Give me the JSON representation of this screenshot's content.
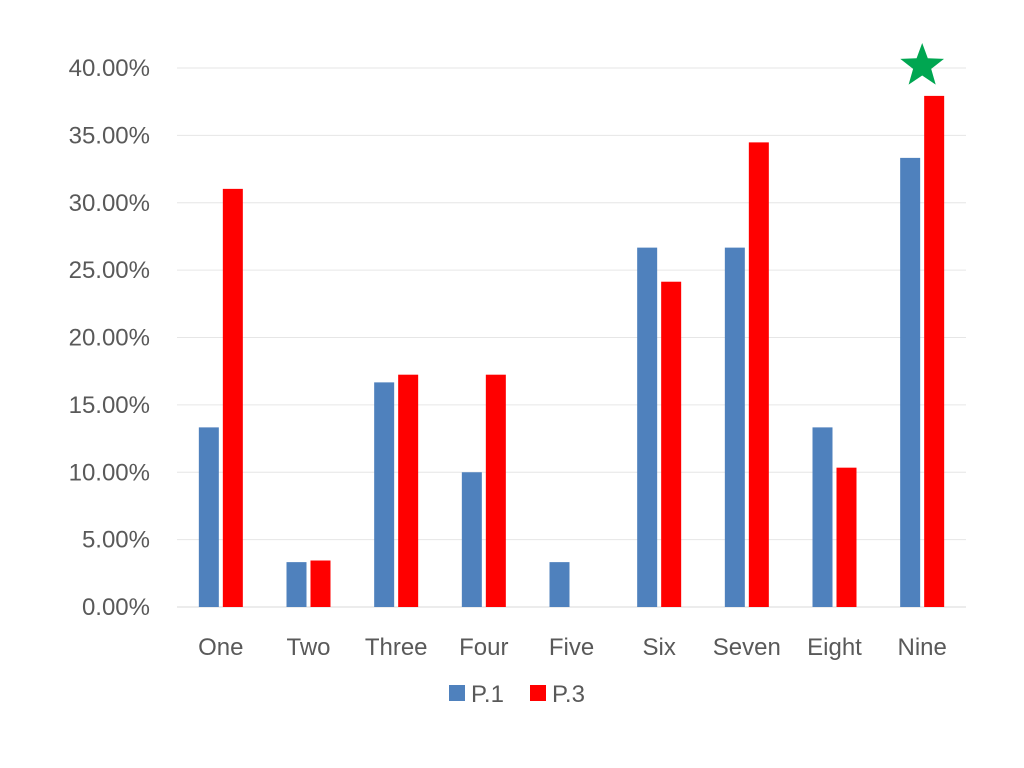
{
  "chart_data": {
    "type": "bar",
    "categories": [
      "One",
      "Two",
      "Three",
      "Four",
      "Five",
      "Six",
      "Seven",
      "Eight",
      "Nine"
    ],
    "series": [
      {
        "name": "P.1",
        "color": "#4F81BD",
        "values": [
          13.33,
          3.33,
          16.67,
          10.0,
          3.33,
          26.67,
          26.67,
          13.33,
          33.33
        ]
      },
      {
        "name": "P.3",
        "color": "#FF0000",
        "values": [
          31.03,
          3.45,
          17.24,
          17.24,
          0.0,
          24.14,
          34.48,
          10.34,
          37.93
        ]
      }
    ],
    "ylim": [
      0,
      40
    ],
    "yticks": [
      0,
      5,
      10,
      15,
      20,
      25,
      30,
      35,
      40
    ],
    "ytick_format": "percent-2dp",
    "grid": true,
    "legend_position": "bottom-center",
    "annotation": {
      "shape": "star",
      "color": "#00A651",
      "category": "Nine"
    }
  }
}
